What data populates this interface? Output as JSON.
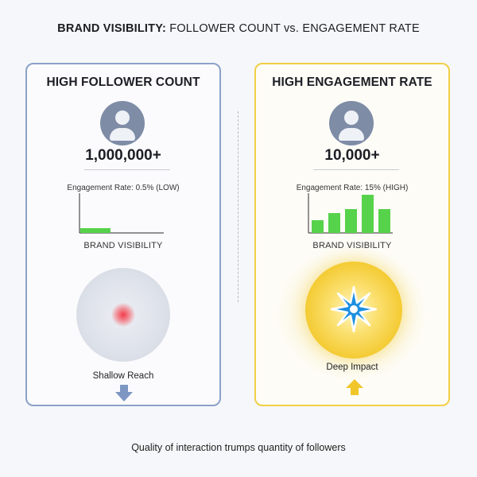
{
  "title": {
    "bold": "BRAND VISIBILITY:",
    "rest": " FOLLOWER COUNT vs. ENGAGEMENT RATE"
  },
  "left": {
    "heading": "HIGH FOLLOWER COUNT",
    "count": "1,000,000+",
    "engagement": "Engagement Rate: 0.5% (LOW)",
    "engagement_rate_percent": 0.5,
    "visibility_label": "BRAND VISIBILITY",
    "caption": "Shallow Reach",
    "accent": "#8aa2c9",
    "icon": "person-avatar-icon",
    "arrow_icon": "arrow-down-icon"
  },
  "right": {
    "heading": "HIGH ENGAGEMENT RATE",
    "count": "10,000+",
    "engagement": "Engagement Rate: 15% (HIGH)",
    "engagement_rate_percent": 15,
    "visibility_label": "BRAND VISIBILITY",
    "caption": "Deep Impact",
    "accent": "#f1cf45",
    "icon": "person-avatar-icon",
    "arrow_icon": "arrow-up-icon"
  },
  "footer": "Quality of interaction trumps quantity of followers"
}
